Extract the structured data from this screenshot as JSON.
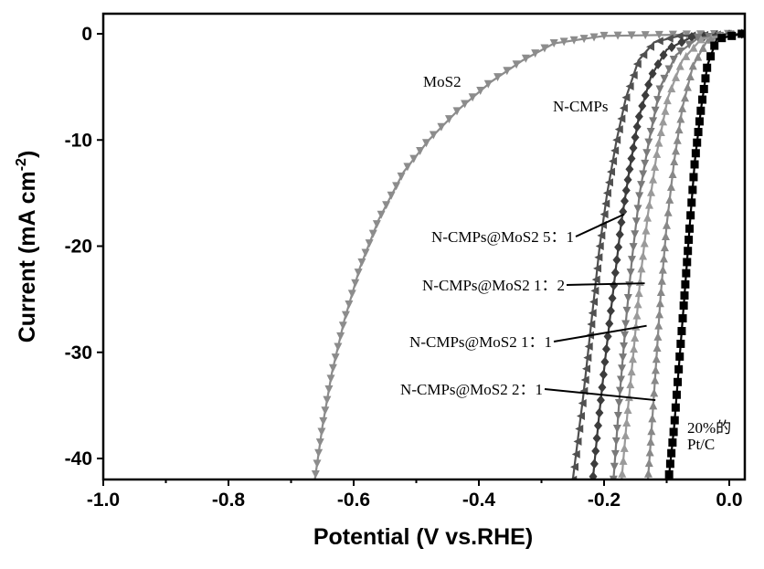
{
  "chart_data": {
    "type": "line",
    "title": "",
    "xlabel": "Potential (V vs.RHE)",
    "ylabel": "Current (mA cm",
    "ylabel_sup": "-2",
    "ylabel_close": ")",
    "xlim": [
      -1.0,
      0.025
    ],
    "ylim": [
      -42,
      2
    ],
    "xticks": [
      -1.0,
      -0.8,
      -0.6,
      -0.4,
      -0.2,
      0.0
    ],
    "xtick_labels": [
      "-1.0",
      "-0.8",
      "-0.6",
      "-0.4",
      "-0.2",
      "0.0"
    ],
    "yticks": [
      0,
      -10,
      -20,
      -30,
      -40
    ],
    "ytick_labels": [
      "0",
      "-10",
      "-20",
      "-30",
      "-40"
    ],
    "grid": false,
    "series": [
      {
        "name": "MoS2",
        "color": "#8c8c8c",
        "marker": "triangle-down",
        "points": [
          [
            0.02,
            0
          ],
          [
            -0.2,
            -0.2
          ],
          [
            -0.28,
            -0.9
          ],
          [
            -0.33,
            -2.5
          ],
          [
            -0.38,
            -4.5
          ],
          [
            -0.43,
            -7
          ],
          [
            -0.48,
            -10
          ],
          [
            -0.52,
            -13
          ],
          [
            -0.56,
            -17.5
          ],
          [
            -0.59,
            -22
          ],
          [
            -0.615,
            -27
          ],
          [
            -0.635,
            -32
          ],
          [
            -0.65,
            -37
          ],
          [
            -0.662,
            -42
          ]
        ]
      },
      {
        "name": "N-CMPs",
        "color": "#505050",
        "marker": "triangle-left",
        "points": [
          [
            0.02,
            0
          ],
          [
            -0.08,
            -0.2
          ],
          [
            -0.12,
            -0.8
          ],
          [
            -0.145,
            -2.5
          ],
          [
            -0.165,
            -6
          ],
          [
            -0.18,
            -10
          ],
          [
            -0.195,
            -15
          ],
          [
            -0.207,
            -20
          ],
          [
            -0.22,
            -27
          ],
          [
            -0.233,
            -34
          ],
          [
            -0.25,
            -42
          ]
        ]
      },
      {
        "name": "N-CMPs@MoS2 5：1",
        "color": "#3c3c3c",
        "marker": "diamond",
        "points": [
          [
            0.02,
            0
          ],
          [
            -0.06,
            -0.3
          ],
          [
            -0.1,
            -1.5
          ],
          [
            -0.125,
            -4
          ],
          [
            -0.145,
            -8
          ],
          [
            -0.16,
            -13
          ],
          [
            -0.173,
            -18
          ],
          [
            -0.185,
            -24
          ],
          [
            -0.197,
            -30
          ],
          [
            -0.208,
            -36
          ],
          [
            -0.218,
            -42
          ]
        ]
      },
      {
        "name": "N-CMPs@MoS2 1：2",
        "color": "#7a7a7a",
        "marker": "triangle-down",
        "points": [
          [
            0.02,
            0
          ],
          [
            -0.05,
            -0.4
          ],
          [
            -0.085,
            -2
          ],
          [
            -0.11,
            -5
          ],
          [
            -0.128,
            -10
          ],
          [
            -0.143,
            -15
          ],
          [
            -0.155,
            -21
          ],
          [
            -0.165,
            -27
          ],
          [
            -0.175,
            -34
          ],
          [
            -0.185,
            -42
          ]
        ]
      },
      {
        "name": "N-CMPs@MoS2 1：1",
        "color": "#9a9a9a",
        "marker": "triangle-up",
        "points": [
          [
            0.02,
            0
          ],
          [
            -0.045,
            -0.5
          ],
          [
            -0.075,
            -2.5
          ],
          [
            -0.098,
            -6
          ],
          [
            -0.115,
            -11
          ],
          [
            -0.13,
            -17
          ],
          [
            -0.142,
            -23
          ],
          [
            -0.153,
            -30
          ],
          [
            -0.163,
            -36
          ],
          [
            -0.172,
            -42
          ]
        ]
      },
      {
        "name": "N-CMPs@MoS2 2：1",
        "color": "#888888",
        "marker": "triangle-up",
        "points": [
          [
            0.02,
            0
          ],
          [
            -0.035,
            -0.6
          ],
          [
            -0.058,
            -3
          ],
          [
            -0.075,
            -7
          ],
          [
            -0.088,
            -12
          ],
          [
            -0.1,
            -18
          ],
          [
            -0.11,
            -25
          ],
          [
            -0.118,
            -32
          ],
          [
            -0.125,
            -38
          ],
          [
            -0.13,
            -42
          ]
        ]
      },
      {
        "name": "20%的 Pt/C",
        "color": "#000000",
        "marker": "square",
        "points": [
          [
            0.02,
            0
          ],
          [
            -0.02,
            -0.5
          ],
          [
            -0.035,
            -3
          ],
          [
            -0.045,
            -7
          ],
          [
            -0.055,
            -12
          ],
          [
            -0.063,
            -18
          ],
          [
            -0.072,
            -25
          ],
          [
            -0.08,
            -31
          ],
          [
            -0.088,
            -37
          ],
          [
            -0.097,
            -42
          ]
        ]
      }
    ],
    "annotations": [
      {
        "text": "MoS2",
        "series": "MoS2"
      },
      {
        "text": "N-CMPs",
        "series": "N-CMPs"
      },
      {
        "text": "N-CMPs@MoS2 5：1",
        "series": "N-CMPs@MoS2 5：1",
        "target": [
          -0.168,
          -17
        ]
      },
      {
        "text": "N-CMPs@MoS2 1：2",
        "series": "N-CMPs@MoS2 1：2",
        "target": [
          -0.135,
          -23.5
        ]
      },
      {
        "text": "N-CMPs@MoS2 1：1",
        "series": "N-CMPs@MoS2 1：1",
        "target": [
          -0.132,
          -27.5
        ]
      },
      {
        "text": "N-CMPs@MoS2 2：1",
        "series": "N-CMPs@MoS2 2：1",
        "target": [
          -0.118,
          -34.5
        ]
      },
      {
        "text": "20%的",
        "text2": "Pt/C",
        "series": "20%的 Pt/C"
      }
    ]
  }
}
